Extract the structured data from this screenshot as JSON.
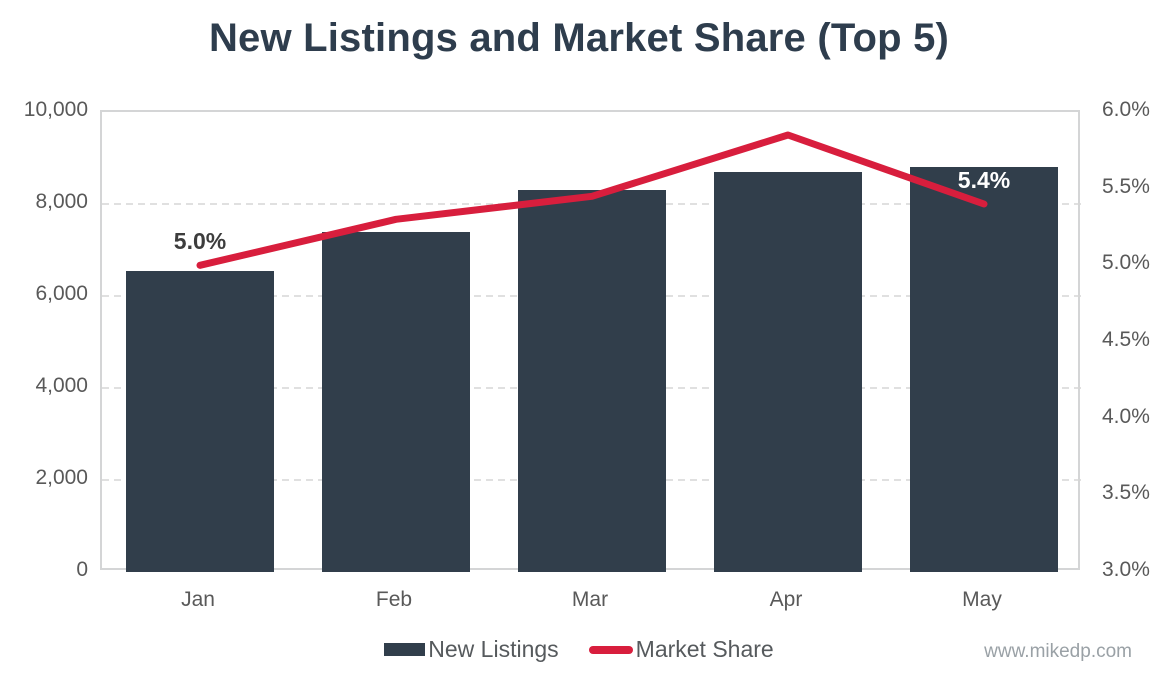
{
  "title": "New Listings and Market Share (Top 5)",
  "watermark": "www.mikedp.com",
  "legend": {
    "items": [
      {
        "label": "New Listings",
        "swatch": "bar"
      },
      {
        "label": "Market Share",
        "swatch": "line"
      }
    ]
  },
  "chart_data": {
    "type": "bar+line combo",
    "title": "New Listings and Market Share (Top 5)",
    "categories": [
      "Jan",
      "Feb",
      "Mar",
      "Apr",
      "May"
    ],
    "series": [
      {
        "name": "New Listings",
        "type": "bar",
        "axis": "left",
        "color": "#313e4b",
        "values": [
          6550,
          7400,
          8300,
          8700,
          8800
        ]
      },
      {
        "name": "Market Share",
        "type": "line",
        "axis": "right",
        "color": "#d81e3d",
        "values": [
          5.0,
          5.3,
          5.45,
          5.85,
          5.4
        ],
        "point_labels": [
          {
            "index": 0,
            "text": "5.0%",
            "color": "#3d3d3d"
          },
          {
            "index": 4,
            "text": "5.4%",
            "color": "#ffffff"
          }
        ]
      }
    ],
    "left_axis": {
      "min": 0,
      "max": 10000,
      "step": 2000,
      "tick_labels": [
        "0",
        "2,000",
        "4,000",
        "6,000",
        "8,000",
        "10,000"
      ]
    },
    "right_axis": {
      "min": 3.0,
      "max": 6.0,
      "step": 0.5,
      "tick_labels": [
        "3.0%",
        "3.5%",
        "4.0%",
        "4.5%",
        "5.0%",
        "5.5%",
        "6.0%"
      ]
    },
    "grid": {
      "horizontal": "dashed",
      "color": "#d6d6d6"
    },
    "axis_border_color": "#d4d5d6",
    "tick_label_color": "#595959",
    "legend_position": "bottom"
  }
}
